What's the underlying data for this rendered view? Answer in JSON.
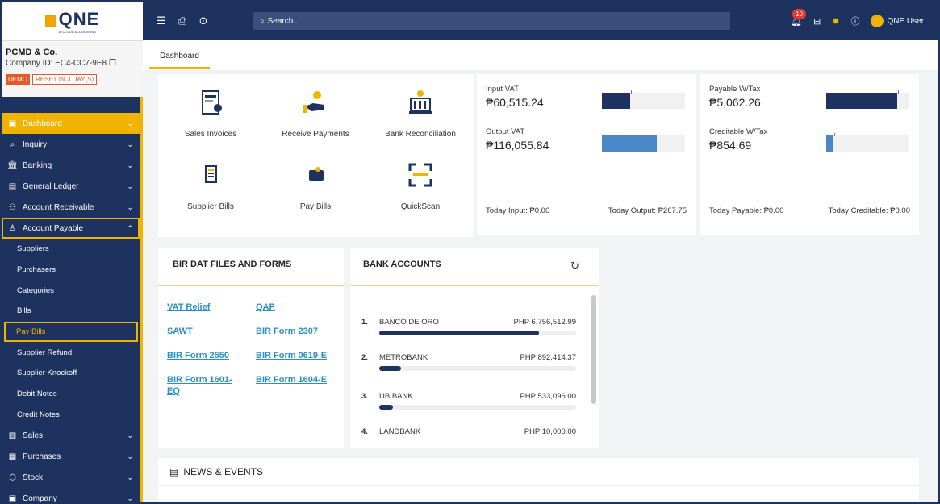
{
  "logo": {
    "text": "QNE",
    "subtitle": "AI CLOUD ACCOUNTING"
  },
  "company": {
    "name": "PCMD & Co.",
    "id": "Company ID: EC4-CC7-9E8",
    "demo": "DEMO",
    "reset": "RESET IN 3 DAY(S)"
  },
  "nav": {
    "items": [
      {
        "label": "Dashboard",
        "icon": "dashboard-icon"
      },
      {
        "label": "Inquiry",
        "icon": "inquiry-icon"
      },
      {
        "label": "Banking",
        "icon": "bank-icon"
      },
      {
        "label": "General Ledger",
        "icon": "ledger-icon"
      },
      {
        "label": "Account Receivable",
        "icon": "receivable-icon"
      },
      {
        "label": "Account Payable",
        "icon": "payable-icon"
      }
    ],
    "ap_sub": [
      "Suppliers",
      "Purchasers",
      "Categories",
      "Bills",
      "Pay Bills",
      "Supplier Refund",
      "Supplier Knockoff",
      "Debit Notes",
      "Credit Notes"
    ],
    "bottom": [
      {
        "label": "Sales",
        "icon": "sales-icon"
      },
      {
        "label": "Purchases",
        "icon": "purchases-icon"
      },
      {
        "label": "Stock",
        "icon": "stock-icon"
      },
      {
        "label": "Company",
        "icon": "company-icon"
      }
    ]
  },
  "topbar": {
    "search_placeholder": "Search...",
    "notification_count": "10",
    "user": "QNE User"
  },
  "tabs": {
    "dashboard": "Dashboard"
  },
  "shortcuts": [
    "Sales Invoices",
    "Receive Payments",
    "Bank Reconciliation",
    "Supplier Bills",
    "Pay Bills",
    "QuickScan"
  ],
  "vat": {
    "input_label": "Input VAT",
    "input_value": "₱60,515.24",
    "output_label": "Output VAT",
    "output_value": "₱116,055.84",
    "today_input": "Today Input: ₱0.00",
    "today_output": "Today Output: ₱267.75",
    "input_fill": 0.34,
    "output_fill": 0.66
  },
  "wtax": {
    "payable_label": "Payable W/Tax",
    "payable_value": "₱5,062.26",
    "creditable_label": "Creditable W/Tax",
    "creditable_value": "₱854.69",
    "today_payable": "Today Payable: ₱0.00",
    "today_creditable": "Today Creditable: ₱0.00",
    "payable_fill": 0.86,
    "creditable_fill": 0.09
  },
  "bir": {
    "title": "BIR DAT FILES AND FORMS",
    "links": [
      "VAT Relief",
      "QAP",
      "SAWT",
      "BIR Form 2307",
      "BIR Form 2550",
      "BIR Form 0619-E",
      "BIR Form 1601-EQ",
      "BIR Form 1604-E"
    ]
  },
  "banks": {
    "title": "BANK ACCOUNTS",
    "rows": [
      {
        "num": "1.",
        "name": "BANCO DE ORO",
        "amount": "PHP 6,756,512.99",
        "fill": 0.81
      },
      {
        "num": "2.",
        "name": "METROBANK",
        "amount": "PHP 892,414.37",
        "fill": 0.11
      },
      {
        "num": "3.",
        "name": "UB BANK",
        "amount": "PHP 533,096.00",
        "fill": 0.07
      },
      {
        "num": "4.",
        "name": "LANDBANK",
        "amount": "PHP 10,000.00",
        "fill": 0.0
      }
    ]
  },
  "news": {
    "title": "NEWS & EVENTS"
  }
}
